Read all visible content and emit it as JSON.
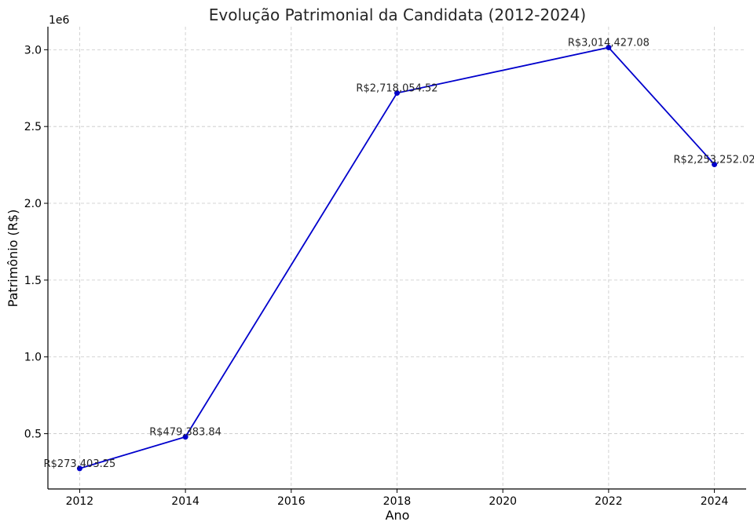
{
  "chart_data": {
    "type": "line",
    "title": "Evolução Patrimonial da Candidata (2012-2024)",
    "xlabel": "Ano",
    "ylabel": "Patrimônio (R$)",
    "y_offset_label": "1e6",
    "xlim": [
      2011.4,
      2024.6
    ],
    "ylim": [
      0.14,
      3.15
    ],
    "x_ticks": [
      2012,
      2014,
      2016,
      2018,
      2020,
      2022,
      2024
    ],
    "x_tick_labels": [
      "2012",
      "2014",
      "2016",
      "2018",
      "2020",
      "2022",
      "2024"
    ],
    "y_ticks": [
      0.5,
      1.0,
      1.5,
      2.0,
      2.5,
      3.0
    ],
    "y_tick_labels": [
      "0.5",
      "1.0",
      "1.5",
      "2.0",
      "2.5",
      "3.0"
    ],
    "grid": true,
    "line_color": "#0000cc",
    "series": [
      {
        "x": [
          2012,
          2014,
          2018,
          2022,
          2024
        ],
        "y": [
          0.27340325,
          0.47938384,
          2.71805452,
          3.01442708,
          2.25325202
        ],
        "labels": [
          "R$273,403.25",
          "R$479,383.84",
          "R$2,718,054.52",
          "R$3,014,427.08",
          "R$2,253,252.02"
        ]
      }
    ]
  }
}
